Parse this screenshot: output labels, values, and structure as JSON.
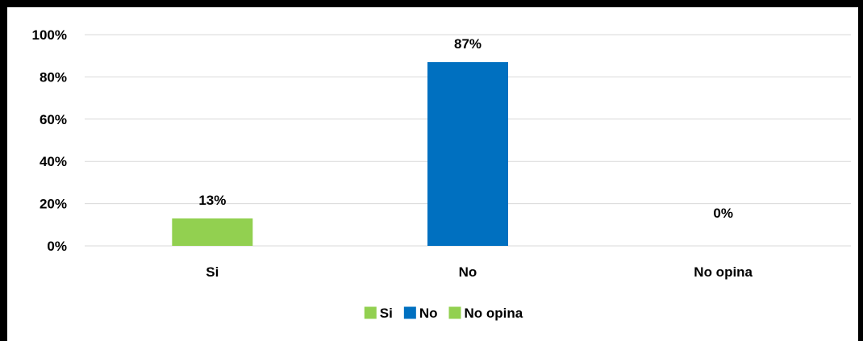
{
  "chart_data": {
    "type": "bar",
    "categories": [
      "Si",
      "No",
      "No opina"
    ],
    "values": [
      13,
      87,
      0
    ],
    "value_suffix": "%",
    "data_labels": [
      "13%",
      "87%",
      "0%"
    ],
    "y_ticks": [
      "0%",
      "20%",
      "40%",
      "60%",
      "80%",
      "100%"
    ],
    "ylim": [
      0,
      100
    ],
    "grid": true,
    "legend_position": "bottom",
    "legend": [
      "Si",
      "No",
      "No opina"
    ],
    "colors": [
      "#92d050",
      "#0070c0",
      "#92d050"
    ],
    "gridline_color": "#d9d9d9"
  }
}
